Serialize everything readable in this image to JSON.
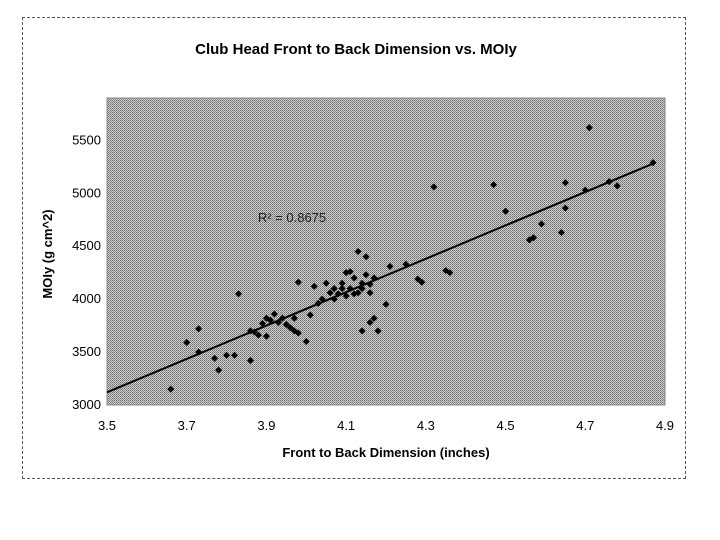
{
  "chart_data": {
    "type": "scatter",
    "title": "Club Head Front to Back Dimension vs. MOIy",
    "xlabel": "Front to Back Dimension (inches)",
    "ylabel": "MOIy (g cm^2)",
    "xlim": [
      3.5,
      4.9
    ],
    "ylim": [
      3000,
      5900
    ],
    "x_ticks": [
      "3.5",
      "3.7",
      "3.9",
      "4.1",
      "4.3",
      "4.5",
      "4.7",
      "4.9"
    ],
    "y_ticks": [
      "3000",
      "3500",
      "4000",
      "4500",
      "5000",
      "5500"
    ],
    "x_tick_values": [
      3.5,
      3.7,
      3.9,
      4.1,
      4.3,
      4.5,
      4.7,
      4.9
    ],
    "y_tick_values": [
      3000,
      3500,
      4000,
      4500,
      5000,
      5500
    ],
    "annotation": "R² = 0.8675",
    "grid": false,
    "trendline": {
      "x": [
        3.5,
        4.87
      ],
      "y": [
        3120,
        5280
      ]
    },
    "series": [
      {
        "points": [
          [
            3.66,
            3150
          ],
          [
            3.7,
            3590
          ],
          [
            3.73,
            3720
          ],
          [
            3.73,
            3500
          ],
          [
            3.77,
            3440
          ],
          [
            3.78,
            3330
          ],
          [
            3.8,
            3470
          ],
          [
            3.82,
            3470
          ],
          [
            3.83,
            4050
          ],
          [
            3.86,
            3700
          ],
          [
            3.86,
            3420
          ],
          [
            3.87,
            3690
          ],
          [
            3.88,
            3660
          ],
          [
            3.89,
            3770
          ],
          [
            3.9,
            3650
          ],
          [
            3.9,
            3820
          ],
          [
            3.91,
            3800
          ],
          [
            3.92,
            3860
          ],
          [
            3.93,
            3780
          ],
          [
            3.94,
            3820
          ],
          [
            3.95,
            3760
          ],
          [
            3.96,
            3730
          ],
          [
            3.97,
            3700
          ],
          [
            3.97,
            3820
          ],
          [
            3.98,
            3680
          ],
          [
            3.98,
            4160
          ],
          [
            4.0,
            3600
          ],
          [
            4.01,
            3850
          ],
          [
            4.02,
            4120
          ],
          [
            4.03,
            3960
          ],
          [
            4.04,
            4000
          ],
          [
            4.05,
            4150
          ],
          [
            4.06,
            4060
          ],
          [
            4.07,
            4100
          ],
          [
            4.07,
            4000
          ],
          [
            4.08,
            4050
          ],
          [
            4.09,
            4100
          ],
          [
            4.09,
            4150
          ],
          [
            4.1,
            4250
          ],
          [
            4.1,
            4030
          ],
          [
            4.11,
            4100
          ],
          [
            4.11,
            4260
          ],
          [
            4.12,
            4050
          ],
          [
            4.12,
            4200
          ],
          [
            4.13,
            4060
          ],
          [
            4.13,
            4450
          ],
          [
            4.14,
            4100
          ],
          [
            4.14,
            4150
          ],
          [
            4.15,
            4230
          ],
          [
            4.15,
            4400
          ],
          [
            4.16,
            4140
          ],
          [
            4.16,
            4060
          ],
          [
            4.17,
            4200
          ],
          [
            4.18,
            3700
          ],
          [
            4.16,
            3780
          ],
          [
            4.17,
            3820
          ],
          [
            4.14,
            3700
          ],
          [
            4.2,
            3950
          ],
          [
            4.21,
            4310
          ],
          [
            4.25,
            4330
          ],
          [
            4.28,
            4190
          ],
          [
            4.29,
            4160
          ],
          [
            4.32,
            5060
          ],
          [
            4.35,
            4270
          ],
          [
            4.36,
            4250
          ],
          [
            4.47,
            5080
          ],
          [
            4.5,
            4830
          ],
          [
            4.56,
            4560
          ],
          [
            4.57,
            4580
          ],
          [
            4.59,
            4710
          ],
          [
            4.64,
            4630
          ],
          [
            4.65,
            4860
          ],
          [
            4.65,
            5100
          ],
          [
            4.7,
            5030
          ],
          [
            4.71,
            5620
          ],
          [
            4.76,
            5110
          ],
          [
            4.78,
            5070
          ],
          [
            4.87,
            5290
          ]
        ]
      }
    ]
  }
}
